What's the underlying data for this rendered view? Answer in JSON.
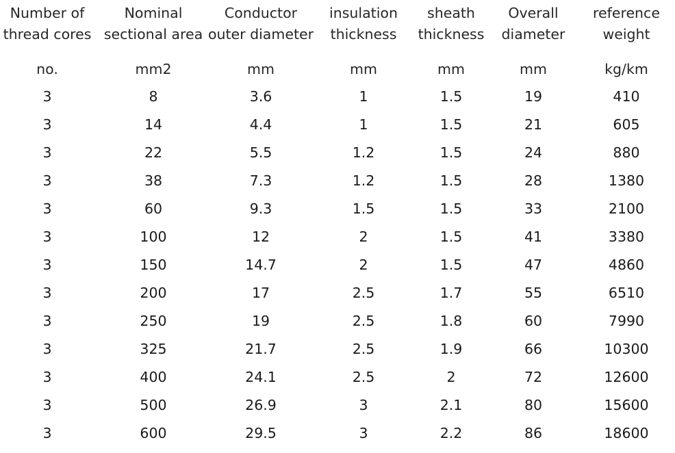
{
  "table": {
    "headers": [
      [
        "Number of",
        "thread cores"
      ],
      [
        "Nominal",
        "sectional area"
      ],
      [
        "Conductor",
        "outer diameter"
      ],
      [
        "insulation",
        "thickness"
      ],
      [
        "sheath",
        "thickness"
      ],
      [
        "Overall",
        "diameter"
      ],
      [
        "reference",
        "weight"
      ]
    ],
    "units": [
      "no.",
      "mm2",
      "mm",
      "mm",
      "mm",
      "mm",
      "kg/km"
    ],
    "rows": [
      [
        "3",
        "8",
        "3.6",
        "1",
        "1.5",
        "19",
        "410"
      ],
      [
        "3",
        "14",
        "4.4",
        "1",
        "1.5",
        "21",
        "605"
      ],
      [
        "3",
        "22",
        "5.5",
        "1.2",
        "1.5",
        "24",
        "880"
      ],
      [
        "3",
        "38",
        "7.3",
        "1.2",
        "1.5",
        "28",
        "1380"
      ],
      [
        "3",
        "60",
        "9.3",
        "1.5",
        "1.5",
        "33",
        "2100"
      ],
      [
        "3",
        "100",
        "12",
        "2",
        "1.5",
        "41",
        "3380"
      ],
      [
        "3",
        "150",
        "14.7",
        "2",
        "1.5",
        "47",
        "4860"
      ],
      [
        "3",
        "200",
        "17",
        "2.5",
        "1.7",
        "55",
        "6510"
      ],
      [
        "3",
        "250",
        "19",
        "2.5",
        "1.8",
        "60",
        "7990"
      ],
      [
        "3",
        "325",
        "21.7",
        "2.5",
        "1.9",
        "66",
        "10300"
      ],
      [
        "3",
        "400",
        "24.1",
        "2.5",
        "2",
        "72",
        "12600"
      ],
      [
        "3",
        "500",
        "26.9",
        "3",
        "2.1",
        "80",
        "15600"
      ],
      [
        "3",
        "600",
        "29.5",
        "3",
        "2.2",
        "86",
        "18600"
      ]
    ]
  }
}
